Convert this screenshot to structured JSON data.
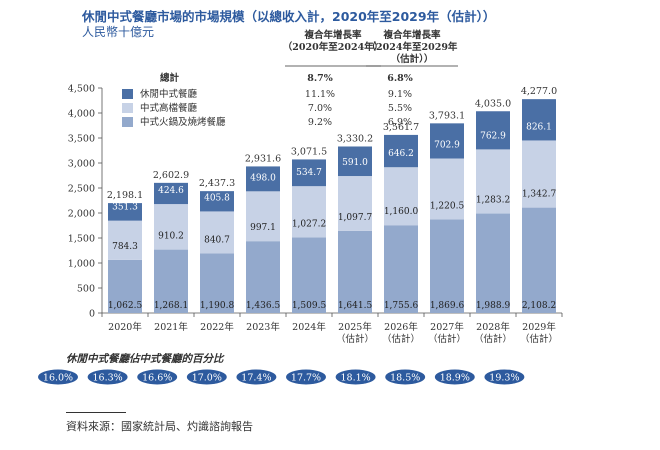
{
  "header": {
    "title": "休閒中式餐廳市場的市場規模（以總收入計，2020年至2029年（估計））",
    "subtitle": "人民幣十億元"
  },
  "colors": {
    "series_1": "#4a6fa5",
    "series_2": "#c7d2e6",
    "series_3": "#93a9cc",
    "pill": "#2d5a9e",
    "title": "#2d5a9e"
  },
  "cagr_table": {
    "col_1_header": [
      "複合年增長率",
      "（2020年至2024年）"
    ],
    "col_2_header": [
      "複合年增長率",
      "（2024年至2029年",
      "（估計））"
    ],
    "total_label": "總計",
    "total_values": [
      "8.7%",
      "6.8%"
    ]
  },
  "chart_data": {
    "type": "bar",
    "stacked": true,
    "categories": [
      "2020年",
      "2021年",
      "2022年",
      "2023年",
      "2024年",
      "2025年\n（估計）",
      "2026年\n（估計）",
      "2027年\n（估計）",
      "2028年\n（估計）",
      "2029年\n（估計）"
    ],
    "series": [
      {
        "name": "中式火鍋及燒烤餐廳",
        "values": [
          1062.5,
          1268.1,
          1190.8,
          1436.5,
          1509.5,
          1641.5,
          1755.6,
          1869.6,
          1988.9,
          2108.2
        ],
        "cagr": [
          "9.2%",
          "6.9%"
        ]
      },
      {
        "name": "中式高檔餐廳",
        "values": [
          784.3,
          910.2,
          840.7,
          997.1,
          1027.2,
          1097.7,
          1160.0,
          1220.5,
          1283.2,
          1342.7
        ],
        "cagr": [
          "7.0%",
          "5.5%"
        ]
      },
      {
        "name": "休閒中式餐廳",
        "values": [
          351.3,
          424.6,
          405.8,
          498.0,
          534.7,
          591.0,
          646.2,
          702.9,
          762.9,
          826.1
        ],
        "cagr": [
          "11.1%",
          "9.1%"
        ]
      }
    ],
    "totals": [
      "2,198.1",
      "2,602.9",
      "2,437.3",
      "2,931.6",
      "3,071.5",
      "3,330.2",
      "3,561.7",
      "3,793.1",
      "4,035.0",
      "4,277.0"
    ],
    "ylim": [
      0,
      4500
    ],
    "yticks": [
      0,
      500,
      1000,
      1500,
      2000,
      2500,
      3000,
      3500,
      4000,
      4500
    ],
    "ytick_labels": [
      "0",
      "500",
      "1,000",
      "1,500",
      "2,000",
      "2,500",
      "3,000",
      "3,500",
      "4,000",
      "4,500"
    ],
    "legend_order": [
      "休閒中式餐廳",
      "中式高檔餐廳",
      "中式火鍋及燒烤餐廳"
    ],
    "legend_placement": "top-left",
    "grid": false
  },
  "share": {
    "title": "休閒中式餐廳佔中式餐廳的百分比",
    "values": [
      "16.0%",
      "16.3%",
      "16.6%",
      "17.0%",
      "17.4%",
      "17.7%",
      "18.1%",
      "18.5%",
      "18.9%",
      "19.3%"
    ]
  },
  "source": "資料來源：國家統計局、灼識諮詢報告"
}
